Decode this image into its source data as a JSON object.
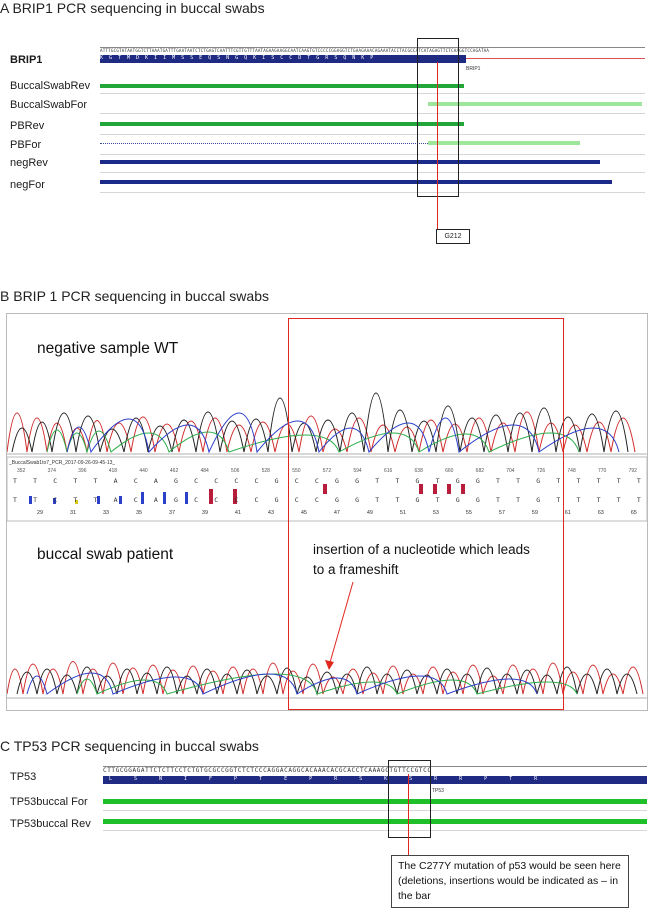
{
  "panel_a": {
    "title": "A BRIP1 PCR sequencing in buccal swabs",
    "ref_label": "BRIP1",
    "ref_seq": "ATTTGCGTATAATGGTCTTAAATGATTTGAATAATCTCTGAGTCAATTTCGTTGTTTAATAGAAGAAGGCAATCAAGTGTCCCCCGGAGGTCTGAAGAAACAGAAATACCTACGCCATCATAGAGTTCTCAAGGTCCAGATAA",
    "aa_seq": "KGTMDKIIMSSEQSNGQKISCCDTGRSQNKP",
    "gene_tag": "BRIP1",
    "tracks": [
      {
        "label": "BuccalSwabRev"
      },
      {
        "label": "BuccalSwabFor"
      },
      {
        "label": "PBRev"
      },
      {
        "label": "PBFor"
      },
      {
        "label": "negRev"
      },
      {
        "label": "negFor"
      }
    ],
    "marker_label": "G212",
    "colors": {
      "green": "#22a63a",
      "light_green": "#9ee69a",
      "navy": "#1c2a8a",
      "red_line": "#e0281e"
    }
  },
  "panel_b": {
    "title": "B BRIP 1 PCR sequencing in buccal swabs",
    "upper_label": "negative sample WT",
    "lower_label": "buccal swab patient",
    "annotation": "insertion of a nucleotide which leads to a frameshift",
    "file_label": "_BuccalSwab1to7_PCR_2017-09-26-09-45-13_",
    "positions": [
      "352",
      "374",
      "396",
      "418",
      "440",
      "462",
      "484",
      "506",
      "528",
      "550",
      "572",
      "594",
      "616",
      "638",
      "660",
      "682",
      "704",
      "726",
      "748",
      "770",
      "792"
    ],
    "bases_top": [
      "T",
      "T",
      "C",
      "T",
      "T",
      "A",
      "C",
      "A",
      "G",
      "C",
      "C",
      "C",
      "C",
      "G",
      "C",
      "C",
      "G",
      "G",
      "T",
      "T",
      "G",
      "T",
      "G",
      "G",
      "T",
      "T",
      "G",
      "T",
      "T",
      "T",
      "T",
      "T"
    ],
    "bases_bottom": [
      "T",
      "T",
      "C",
      "T",
      "T",
      "A",
      "C",
      "A",
      "G",
      "C",
      "C",
      "C",
      "C",
      "G",
      "C",
      "C",
      "G",
      "G",
      "T",
      "T",
      "G",
      "T",
      "G",
      "G",
      "T",
      "T",
      "G",
      "T",
      "T",
      "T",
      "T",
      "T"
    ],
    "indices": [
      "29",
      "31",
      "33",
      "35",
      "37",
      "39",
      "41",
      "43",
      "45",
      "47",
      "49",
      "51",
      "53",
      "55",
      "57",
      "59",
      "61",
      "63",
      "65"
    ]
  },
  "panel_c": {
    "title": "C TP53 PCR sequencing in buccal swabs",
    "ref_label": "TP53",
    "ref_seq": "CTTGCGGAGATTCTCTTCCTCTGTGCGCCGGTCTCTCCCAGGACAGGCACAAACACGCACCTCAAAGCTGTTCCGTCC",
    "aa_seq": "LSNIFPTEPRSKSRRPTR",
    "gene_tag": "TP53",
    "tracks": [
      {
        "label": "TP53buccal For"
      },
      {
        "label": "TP53buccal Rev"
      }
    ],
    "callout": "The C277Y mutation of p53 would be seen here (deletions, insertions would be indicated as  –  in the bar",
    "colors": {
      "green": "#1fbf2a",
      "navy": "#1c2a8a",
      "red_line": "#e0281e"
    }
  }
}
